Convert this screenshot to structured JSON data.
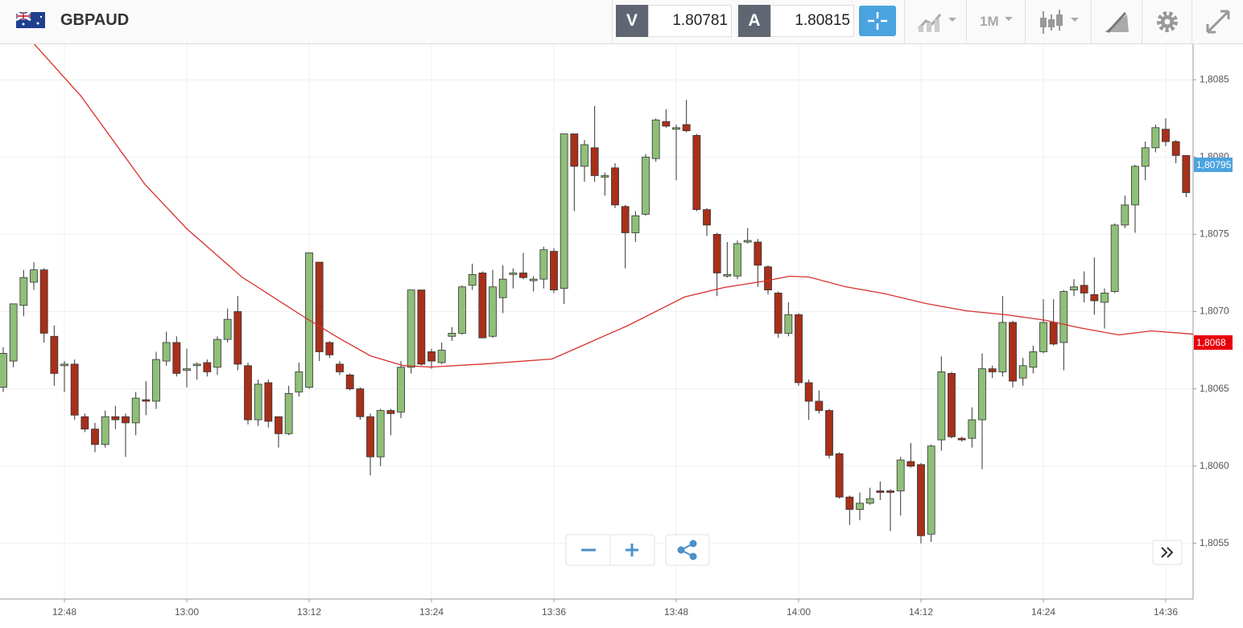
{
  "header": {
    "symbol": "GBPAUD",
    "sell_label": "V",
    "sell_price": "1.80781",
    "buy_label": "A",
    "buy_price": "1.80815",
    "timeframe": "1M"
  },
  "chart_data": {
    "type": "candlestick",
    "up_color": "#8fbf78",
    "down_color": "#a8301a",
    "grid": true,
    "xlim": [
      761.684,
      878.684
    ],
    "ylim": [
      1.80514,
      1.80873
    ],
    "xticks": [
      {
        "value": 768,
        "label": "12:48"
      },
      {
        "value": 780,
        "label": "13:00"
      },
      {
        "value": 792,
        "label": "13:12"
      },
      {
        "value": 804,
        "label": "13:24"
      },
      {
        "value": 816,
        "label": "13:36"
      },
      {
        "value": 828,
        "label": "13:48"
      },
      {
        "value": 840,
        "label": "14:00"
      },
      {
        "value": 852,
        "label": "14:12"
      },
      {
        "value": 864,
        "label": "14:24"
      },
      {
        "value": 876,
        "label": "14:36"
      }
    ],
    "yticks": [
      {
        "value": 1.8055,
        "label": "1,8055"
      },
      {
        "value": 1.806,
        "label": "1,8060"
      },
      {
        "value": 1.8065,
        "label": "1,8065"
      },
      {
        "value": 1.807,
        "label": "1,8070"
      },
      {
        "value": 1.8075,
        "label": "1,8075"
      },
      {
        "value": 1.808,
        "label": "1,8080"
      },
      {
        "value": 1.8085,
        "label": "1,8085"
      }
    ],
    "x": [
      762,
      763,
      764,
      765,
      766,
      767,
      768,
      769,
      770,
      771,
      772,
      773,
      774,
      775,
      776,
      777,
      778,
      779,
      780,
      781,
      782,
      783,
      784,
      785,
      786,
      787,
      788,
      789,
      790,
      791,
      792,
      793,
      794,
      795,
      796,
      797,
      798,
      799,
      800,
      801,
      802,
      803,
      804,
      805,
      806,
      807,
      808,
      809,
      810,
      811,
      812,
      813,
      814,
      815,
      816,
      817,
      818,
      819,
      820,
      821,
      822,
      823,
      824,
      825,
      826,
      827,
      828,
      829,
      830,
      831,
      832,
      833,
      834,
      835,
      836,
      837,
      838,
      839,
      840,
      841,
      842,
      843,
      844,
      845,
      846,
      847,
      848,
      849,
      850,
      851,
      852,
      853,
      854,
      855,
      856,
      857,
      858,
      859,
      860,
      861,
      862,
      863,
      864,
      865,
      866,
      867,
      868,
      869,
      870,
      871,
      872,
      873,
      874,
      875,
      876,
      877,
      878
    ],
    "candles": [
      [
        1.80651,
        1.80677,
        1.80648,
        1.80673
      ],
      [
        1.80668,
        1.80705,
        1.80664,
        1.80705
      ],
      [
        1.80704,
        1.80727,
        1.80697,
        1.80722
      ],
      [
        1.80719,
        1.80732,
        1.80714,
        1.80727
      ],
      [
        1.80727,
        1.80728,
        1.8068,
        1.80686
      ],
      [
        1.80684,
        1.80691,
        1.80652,
        1.8066
      ],
      [
        1.80665,
        1.80668,
        1.80648,
        1.80666
      ],
      [
        1.80666,
        1.80669,
        1.8063,
        1.80633
      ],
      [
        1.80632,
        1.80634,
        1.80622,
        1.80624
      ],
      [
        1.80624,
        1.80628,
        1.80609,
        1.80614
      ],
      [
        1.80614,
        1.80636,
        1.80612,
        1.80632
      ],
      [
        1.80632,
        1.80639,
        1.80624,
        1.8063
      ],
      [
        1.80632,
        1.80634,
        1.80606,
        1.80628
      ],
      [
        1.80628,
        1.80648,
        1.8062,
        1.80644
      ],
      [
        1.80643,
        1.80655,
        1.80633,
        1.80642
      ],
      [
        1.80642,
        1.80674,
        1.80637,
        1.80669
      ],
      [
        1.80668,
        1.80687,
        1.80665,
        1.8068
      ],
      [
        1.8068,
        1.80684,
        1.80658,
        1.8066
      ],
      [
        1.80662,
        1.80676,
        1.80651,
        1.80663
      ],
      [
        1.80665,
        1.80667,
        1.80656,
        1.80666
      ],
      [
        1.80667,
        1.80669,
        1.80658,
        1.80661
      ],
      [
        1.80664,
        1.80684,
        1.80659,
        1.80682
      ],
      [
        1.80682,
        1.80702,
        1.8068,
        1.80695
      ],
      [
        1.807,
        1.8071,
        1.80662,
        1.80666
      ],
      [
        1.80665,
        1.80667,
        1.80627,
        1.8063
      ],
      [
        1.8063,
        1.80656,
        1.80626,
        1.80653
      ],
      [
        1.80654,
        1.80656,
        1.80625,
        1.80629
      ],
      [
        1.80632,
        1.80632,
        1.80612,
        1.80621
      ],
      [
        1.80621,
        1.80652,
        1.8062,
        1.80647
      ],
      [
        1.80648,
        1.80667,
        1.80645,
        1.80661
      ],
      [
        1.80651,
        1.80738,
        1.8065,
        1.80738
      ],
      [
        1.80732,
        1.80732,
        1.80668,
        1.80674
      ],
      [
        1.8068,
        1.80681,
        1.8067,
        1.80672
      ],
      [
        1.80666,
        1.80668,
        1.80659,
        1.80661
      ],
      [
        1.80659,
        1.8066,
        1.80649,
        1.8065
      ],
      [
        1.8065,
        1.80651,
        1.8063,
        1.80632
      ],
      [
        1.80632,
        1.80634,
        1.80594,
        1.80606
      ],
      [
        1.80606,
        1.80637,
        1.806,
        1.80636
      ],
      [
        1.80636,
        1.80637,
        1.8062,
        1.80634
      ],
      [
        1.80635,
        1.80668,
        1.80631,
        1.80664
      ],
      [
        1.80664,
        1.80714,
        1.8066,
        1.80714
      ],
      [
        1.80714,
        1.80714,
        1.80665,
        1.80666
      ],
      [
        1.80674,
        1.80676,
        1.80663,
        1.80668
      ],
      [
        1.80667,
        1.8068,
        1.80666,
        1.80675
      ],
      [
        1.80684,
        1.8069,
        1.80681,
        1.80686
      ],
      [
        1.80686,
        1.80717,
        1.80685,
        1.80716
      ],
      [
        1.80717,
        1.80731,
        1.80714,
        1.80724
      ],
      [
        1.80725,
        1.80726,
        1.80683,
        1.80683
      ],
      [
        1.80684,
        1.80727,
        1.80683,
        1.80716
      ],
      [
        1.80709,
        1.8073,
        1.80699,
        1.80721
      ],
      [
        1.80724,
        1.80728,
        1.80715,
        1.80725
      ],
      [
        1.80725,
        1.80738,
        1.80721,
        1.80722
      ],
      [
        1.8072,
        1.80723,
        1.80713,
        1.80721
      ],
      [
        1.80721,
        1.80742,
        1.80715,
        1.8074
      ],
      [
        1.80739,
        1.80741,
        1.80712,
        1.80714
      ],
      [
        1.80715,
        1.80815,
        1.80705,
        1.80815
      ],
      [
        1.80815,
        1.80815,
        1.80765,
        1.80794
      ],
      [
        1.80794,
        1.80811,
        1.80784,
        1.80808
      ],
      [
        1.80806,
        1.80833,
        1.80784,
        1.80788
      ],
      [
        1.80787,
        1.8079,
        1.80775,
        1.80788
      ],
      [
        1.80793,
        1.80796,
        1.80767,
        1.80769
      ],
      [
        1.80768,
        1.80769,
        1.80728,
        1.80751
      ],
      [
        1.80751,
        1.80765,
        1.80745,
        1.80762
      ],
      [
        1.80763,
        1.80802,
        1.80762,
        1.808
      ],
      [
        1.80799,
        1.80825,
        1.80797,
        1.80824
      ],
      [
        1.80823,
        1.80831,
        1.80819,
        1.8082
      ],
      [
        1.80818,
        1.80821,
        1.80785,
        1.80819
      ],
      [
        1.80821,
        1.80837,
        1.80816,
        1.80817
      ],
      [
        1.80814,
        1.80815,
        1.80765,
        1.80766
      ],
      [
        1.80766,
        1.80767,
        1.80749,
        1.80756
      ],
      [
        1.8075,
        1.80751,
        1.8071,
        1.80725
      ],
      [
        1.80723,
        1.80745,
        1.80722,
        1.80724
      ],
      [
        1.80723,
        1.80746,
        1.80721,
        1.80744
      ],
      [
        1.80745,
        1.80754,
        1.80744,
        1.80746
      ],
      [
        1.80745,
        1.80747,
        1.80716,
        1.8073
      ],
      [
        1.80729,
        1.8073,
        1.80711,
        1.80714
      ],
      [
        1.80712,
        1.80713,
        1.80683,
        1.80686
      ],
      [
        1.80686,
        1.80706,
        1.80684,
        1.80698
      ],
      [
        1.80698,
        1.80699,
        1.80652,
        1.80654
      ],
      [
        1.80654,
        1.80656,
        1.8063,
        1.80642
      ],
      [
        1.80642,
        1.80649,
        1.80634,
        1.80636
      ],
      [
        1.80636,
        1.80637,
        1.80605,
        1.80607
      ],
      [
        1.80608,
        1.80609,
        1.80579,
        1.8058
      ],
      [
        1.8058,
        1.80581,
        1.80562,
        1.80572
      ],
      [
        1.80572,
        1.80583,
        1.80565,
        1.80576
      ],
      [
        1.80576,
        1.80586,
        1.80575,
        1.80579
      ],
      [
        1.80584,
        1.8059,
        1.80578,
        1.80583
      ],
      [
        1.80584,
        1.80585,
        1.80558,
        1.80583
      ],
      [
        1.80584,
        1.80606,
        1.80568,
        1.80604
      ],
      [
        1.80603,
        1.80615,
        1.80599,
        1.806
      ],
      [
        1.80601,
        1.80602,
        1.8055,
        1.80555
      ],
      [
        1.80556,
        1.80614,
        1.80551,
        1.80613
      ],
      [
        1.80617,
        1.80671,
        1.8061,
        1.80661
      ],
      [
        1.8066,
        1.80661,
        1.80618,
        1.80619
      ],
      [
        1.80618,
        1.80619,
        1.80616,
        1.80617
      ],
      [
        1.80618,
        1.80638,
        1.80612,
        1.8063
      ],
      [
        1.8063,
        1.80673,
        1.80598,
        1.80663
      ],
      [
        1.80663,
        1.80665,
        1.80657,
        1.80661
      ],
      [
        1.80661,
        1.8071,
        1.80658,
        1.80693
      ],
      [
        1.80693,
        1.80694,
        1.80651,
        1.80655
      ],
      [
        1.80657,
        1.8067,
        1.80652,
        1.80665
      ],
      [
        1.80664,
        1.80678,
        1.8066,
        1.80674
      ],
      [
        1.80674,
        1.80708,
        1.80673,
        1.80693
      ],
      [
        1.80693,
        1.80708,
        1.80678,
        1.80679
      ],
      [
        1.8068,
        1.80714,
        1.80662,
        1.80713
      ],
      [
        1.80714,
        1.80721,
        1.8071,
        1.80716
      ],
      [
        1.80717,
        1.80726,
        1.80706,
        1.80712
      ],
      [
        1.80711,
        1.80735,
        1.80698,
        1.80707
      ],
      [
        1.80706,
        1.80715,
        1.80689,
        1.80712
      ],
      [
        1.80713,
        1.80757,
        1.80712,
        1.80756
      ],
      [
        1.80756,
        1.80775,
        1.80754,
        1.80769
      ],
      [
        1.80769,
        1.80795,
        1.80751,
        1.80794
      ],
      [
        1.80794,
        1.8081,
        1.80785,
        1.80806
      ],
      [
        1.80806,
        1.80821,
        1.80803,
        1.80819
      ],
      [
        1.80818,
        1.80825,
        1.80807,
        1.8081
      ],
      [
        1.8081,
        1.80811,
        1.80796,
        1.80801
      ],
      [
        1.80801,
        1.80801,
        1.80774,
        1.80777
      ]
    ],
    "ma": {
      "color": "#d9302a",
      "x": [
        765.0,
        769.6,
        775.9,
        780.0,
        785.4,
        791.3,
        794.8,
        798.0,
        801.2,
        803.9,
        809.1,
        815.8,
        818.5,
        823.3,
        828.8,
        832.7,
        836.7,
        839.1,
        841.0,
        844.6,
        848.5,
        852.5,
        856.4,
        860.4,
        864.3,
        867.5,
        871.4,
        874.6,
        878.7
      ],
      "values": [
        1.808734,
        1.808396,
        1.807823,
        1.807536,
        1.807224,
        1.806974,
        1.806833,
        1.806714,
        1.806651,
        1.806641,
        1.806661,
        1.806693,
        1.806771,
        1.806911,
        1.807094,
        1.807156,
        1.807198,
        1.807229,
        1.807224,
        1.807161,
        1.807115,
        1.807052,
        1.807005,
        1.806979,
        1.806943,
        1.806896,
        1.806849,
        1.806875,
        1.806854
      ]
    },
    "price_tags": [
      {
        "value": 1.80795,
        "label": "1,80795",
        "color": "#4aa3df"
      },
      {
        "value": 1.8068,
        "label": "1,8068",
        "color": "#e8000b"
      }
    ]
  }
}
